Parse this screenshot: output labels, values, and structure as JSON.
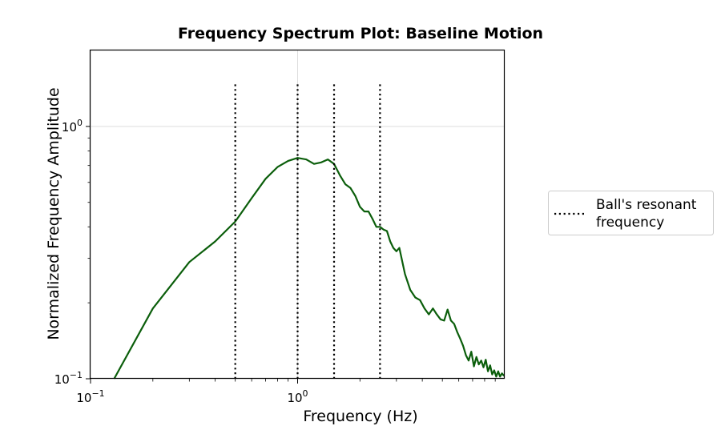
{
  "chart_data": {
    "type": "line",
    "title": "Frequency Spectrum Plot: Baseline Motion",
    "xlabel": "Frequency (Hz)",
    "ylabel": "Normalized Frequency Amplitude",
    "xscale": "log",
    "yscale": "log",
    "xlim": [
      0.1,
      10
    ],
    "ylim": [
      0.1,
      2
    ],
    "x_ticks": [
      {
        "value": 0.1,
        "base": "10",
        "exp": "−1"
      },
      {
        "value": 1,
        "base": "10",
        "exp": "0"
      }
    ],
    "y_ticks": [
      {
        "value": 0.1,
        "base": "10",
        "exp": "−1"
      },
      {
        "value": 1,
        "base": "10",
        "exp": "0"
      }
    ],
    "grid": true,
    "series": [
      {
        "color": "#0b5e0b",
        "x": [
          0.13,
          0.2,
          0.3,
          0.4,
          0.5,
          0.6,
          0.7,
          0.8,
          0.9,
          1.0,
          1.1,
          1.2,
          1.3,
          1.4,
          1.5,
          1.6,
          1.7,
          1.8,
          1.9,
          2.0,
          2.1,
          2.2,
          2.3,
          2.4,
          2.5,
          2.6,
          2.7,
          2.8,
          2.9,
          3.0,
          3.1,
          3.3,
          3.5,
          3.7,
          3.9,
          4.1,
          4.3,
          4.5,
          4.7,
          4.9,
          5.1,
          5.3,
          5.5,
          5.7,
          5.9,
          6.1,
          6.3,
          6.5,
          6.7,
          6.9,
          7.1,
          7.3,
          7.5,
          7.7,
          7.9,
          8.1,
          8.3,
          8.5,
          8.7,
          8.9,
          9.1,
          9.3,
          9.5,
          9.7,
          9.9,
          10.0
        ],
        "y": [
          0.1,
          0.19,
          0.29,
          0.35,
          0.42,
          0.52,
          0.62,
          0.69,
          0.73,
          0.75,
          0.74,
          0.71,
          0.72,
          0.74,
          0.71,
          0.64,
          0.59,
          0.57,
          0.53,
          0.48,
          0.46,
          0.46,
          0.43,
          0.4,
          0.4,
          0.39,
          0.385,
          0.35,
          0.33,
          0.32,
          0.33,
          0.26,
          0.225,
          0.21,
          0.205,
          0.19,
          0.18,
          0.19,
          0.18,
          0.172,
          0.17,
          0.188,
          0.17,
          0.165,
          0.153,
          0.144,
          0.135,
          0.124,
          0.118,
          0.128,
          0.112,
          0.122,
          0.114,
          0.118,
          0.111,
          0.119,
          0.107,
          0.113,
          0.104,
          0.108,
          0.102,
          0.107,
          0.102,
          0.105,
          0.103,
          0.103
        ]
      }
    ],
    "resonant_lines": {
      "label": "Ball's resonant frequency",
      "label_lines": [
        "Ball's resonant",
        "frequency"
      ],
      "style": "dotted",
      "color": "#000000",
      "x": [
        0.5,
        1.0,
        1.5,
        2.5
      ],
      "y_range": [
        0.1,
        1.5
      ]
    },
    "legend_placement": "right, outside plot"
  }
}
